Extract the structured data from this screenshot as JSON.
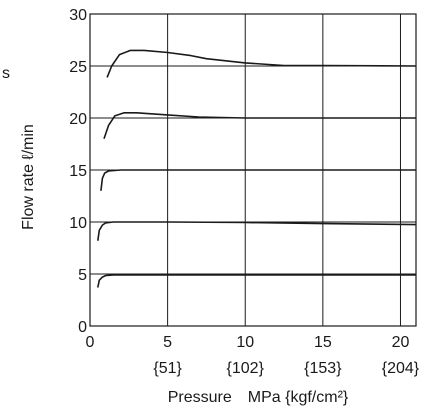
{
  "chart_data": {
    "type": "line",
    "xlabel": "Pressure MPa {kgf/cm²}",
    "ylabel": "Flow rate ℓ/min",
    "edge_text": "s",
    "xlim": [
      0,
      21
    ],
    "ylim": [
      0,
      30
    ],
    "x_ticks": [
      {
        "value": 0,
        "label": "0",
        "sublabel": ""
      },
      {
        "value": 5,
        "label": "5",
        "sublabel": "{51}"
      },
      {
        "value": 10,
        "label": "10",
        "sublabel": "{102}"
      },
      {
        "value": 15,
        "label": "15",
        "sublabel": "{153}"
      },
      {
        "value": 20,
        "label": "20",
        "sublabel": "{204}"
      }
    ],
    "y_ticks": [
      {
        "value": 0,
        "label": "0"
      },
      {
        "value": 5,
        "label": "5"
      },
      {
        "value": 10,
        "label": "10"
      },
      {
        "value": 15,
        "label": "15"
      },
      {
        "value": 20,
        "label": "20"
      },
      {
        "value": 25,
        "label": "25"
      },
      {
        "value": 30,
        "label": "30"
      }
    ],
    "grid": true,
    "series": [
      {
        "points": [
          [
            0.5,
            3.7
          ],
          [
            0.6,
            4.4
          ],
          [
            0.8,
            4.7
          ],
          [
            1.0,
            4.85
          ],
          [
            1.5,
            4.9
          ],
          [
            21,
            4.9
          ]
        ]
      },
      {
        "points": [
          [
            0.5,
            8.2
          ],
          [
            0.6,
            9.2
          ],
          [
            0.8,
            9.7
          ],
          [
            1.0,
            9.9
          ],
          [
            1.5,
            10.0
          ],
          [
            5,
            10.0
          ],
          [
            10,
            9.95
          ],
          [
            15,
            9.85
          ],
          [
            21,
            9.75
          ]
        ]
      },
      {
        "points": [
          [
            0.7,
            13.0
          ],
          [
            0.8,
            14.2
          ],
          [
            0.95,
            14.7
          ],
          [
            1.2,
            14.9
          ],
          [
            2.0,
            15.0
          ],
          [
            21,
            15.0
          ]
        ]
      },
      {
        "points": [
          [
            0.9,
            18.0
          ],
          [
            1.2,
            19.3
          ],
          [
            1.6,
            20.2
          ],
          [
            2.2,
            20.5
          ],
          [
            3,
            20.5
          ],
          [
            5,
            20.3
          ],
          [
            7,
            20.1
          ],
          [
            10,
            20.0
          ],
          [
            21,
            20.0
          ]
        ]
      },
      {
        "points": [
          [
            1.1,
            23.9
          ],
          [
            1.4,
            25.0
          ],
          [
            1.9,
            26.1
          ],
          [
            2.6,
            26.5
          ],
          [
            3.5,
            26.5
          ],
          [
            5,
            26.3
          ],
          [
            6.5,
            26.0
          ],
          [
            7.5,
            25.7
          ],
          [
            10,
            25.3
          ],
          [
            12.5,
            25.05
          ],
          [
            15,
            25.05
          ],
          [
            21,
            25.0
          ]
        ]
      }
    ]
  }
}
